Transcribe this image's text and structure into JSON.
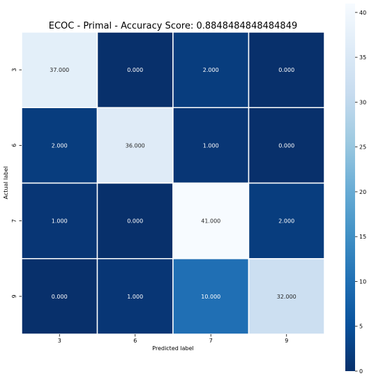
{
  "chart_data": {
    "type": "heatmap",
    "title": "ECOC - Primal - Accuracy Score: 0.8848484848484849",
    "xlabel": "Predicted label",
    "ylabel": "Actual label",
    "x_categories": [
      "3",
      "6",
      "7",
      "9"
    ],
    "y_categories": [
      "3",
      "6",
      "7",
      "9"
    ],
    "values": [
      [
        37,
        0,
        2,
        0
      ],
      [
        2,
        36,
        1,
        0
      ],
      [
        1,
        0,
        41,
        2
      ],
      [
        0,
        1,
        10,
        32
      ]
    ],
    "cell_labels": [
      [
        "37.000",
        "0.000",
        "2.000",
        "0.000"
      ],
      [
        "2.000",
        "36.000",
        "1.000",
        "0.000"
      ],
      [
        "1.000",
        "0.000",
        "41.000",
        "2.000"
      ],
      [
        "0.000",
        "1.000",
        "10.000",
        "32.000"
      ]
    ],
    "colormap": "Blues",
    "vmin": 0,
    "vmax": 41,
    "colorbar_ticks": [
      0,
      5,
      10,
      15,
      20,
      25,
      30,
      35,
      40
    ],
    "colors": {
      "low": "#08306b",
      "high": "#f7fbff",
      "grid_line": "#ffffff",
      "dark_text": "#262626",
      "light_text": "#ffffff"
    }
  }
}
